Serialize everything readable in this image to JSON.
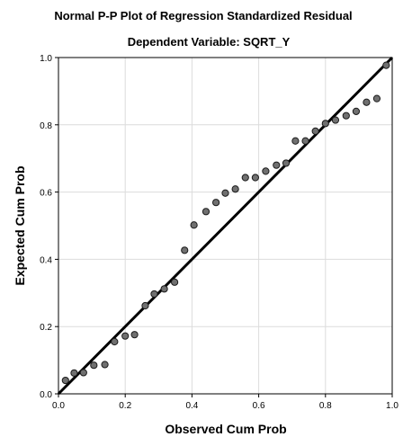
{
  "chart_data": {
    "type": "scatter",
    "title": "Normal P-P Plot of Regression Standardized Residual",
    "subtitle": "Dependent Variable: SQRT_Y",
    "xlabel": "Observed Cum Prob",
    "ylabel": "Expected Cum Prob",
    "xlim": [
      0.0,
      1.0
    ],
    "ylim": [
      0.0,
      1.0
    ],
    "xticks": [
      "0.0",
      "0.2",
      "0.4",
      "0.6",
      "0.8",
      "1.0"
    ],
    "yticks": [
      "0.0",
      "0.2",
      "0.4",
      "0.6",
      "0.8",
      "1.0"
    ],
    "grid": true,
    "reference_line": {
      "from": [
        0,
        0
      ],
      "to": [
        1,
        1
      ]
    },
    "points": [
      {
        "x": 0.021,
        "y": 0.04
      },
      {
        "x": 0.047,
        "y": 0.062
      },
      {
        "x": 0.075,
        "y": 0.063
      },
      {
        "x": 0.106,
        "y": 0.085
      },
      {
        "x": 0.139,
        "y": 0.087
      },
      {
        "x": 0.168,
        "y": 0.155
      },
      {
        "x": 0.2,
        "y": 0.172
      },
      {
        "x": 0.228,
        "y": 0.176
      },
      {
        "x": 0.26,
        "y": 0.262
      },
      {
        "x": 0.287,
        "y": 0.297
      },
      {
        "x": 0.317,
        "y": 0.312
      },
      {
        "x": 0.348,
        "y": 0.332
      },
      {
        "x": 0.378,
        "y": 0.427
      },
      {
        "x": 0.406,
        "y": 0.502
      },
      {
        "x": 0.442,
        "y": 0.542
      },
      {
        "x": 0.472,
        "y": 0.569
      },
      {
        "x": 0.5,
        "y": 0.597
      },
      {
        "x": 0.53,
        "y": 0.609
      },
      {
        "x": 0.56,
        "y": 0.643
      },
      {
        "x": 0.59,
        "y": 0.643
      },
      {
        "x": 0.621,
        "y": 0.662
      },
      {
        "x": 0.653,
        "y": 0.68
      },
      {
        "x": 0.682,
        "y": 0.686
      },
      {
        "x": 0.71,
        "y": 0.752
      },
      {
        "x": 0.74,
        "y": 0.752
      },
      {
        "x": 0.77,
        "y": 0.781
      },
      {
        "x": 0.8,
        "y": 0.804
      },
      {
        "x": 0.83,
        "y": 0.814
      },
      {
        "x": 0.862,
        "y": 0.827
      },
      {
        "x": 0.892,
        "y": 0.84
      },
      {
        "x": 0.923,
        "y": 0.867
      },
      {
        "x": 0.954,
        "y": 0.878
      },
      {
        "x": 0.982,
        "y": 0.977
      }
    ],
    "colors": {
      "point_fill": "#707070",
      "point_stroke": "#1a1a1a",
      "line": "#000000",
      "grid": "#dcdcdc",
      "frame": "#000000"
    }
  }
}
